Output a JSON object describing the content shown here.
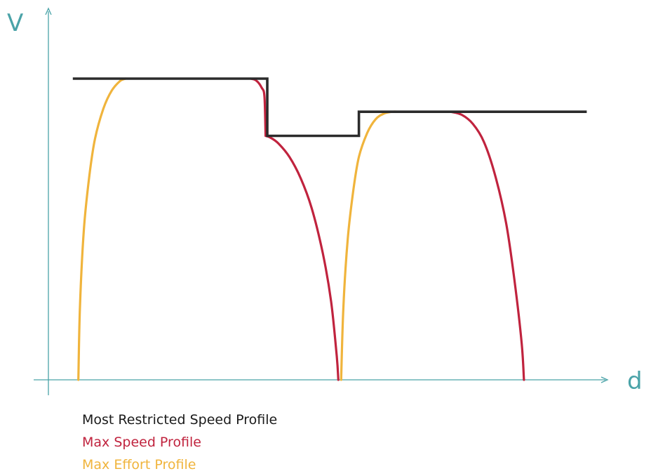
{
  "chart_data": {
    "type": "line",
    "xlabel": "d",
    "ylabel": "V",
    "axis_color": "#4aa3a8",
    "xlim": [
      0,
      100
    ],
    "ylim": [
      0,
      100
    ],
    "grid": false,
    "legend_placement": "bottom-left",
    "series": [
      {
        "name": "Most Restricted Speed Profile",
        "color": "#2b2b2b",
        "x": [
          3,
          38,
          38,
          54.5,
          54.5,
          95.5
        ],
        "y": [
          100,
          100,
          81,
          81,
          89,
          89
        ]
      },
      {
        "name": "Max Speed Profile",
        "color": "#c0233e",
        "x": [
          35,
          36,
          37,
          37.5,
          37.7,
          38.5,
          40,
          42,
          44,
          46,
          48,
          49.5,
          50.5,
          50.8,
          71,
          73,
          75,
          77,
          79,
          81,
          82.5,
          83.8,
          84.2
        ],
        "y": [
          100,
          99.4,
          97,
          94,
          81,
          80.5,
          78.5,
          74,
          67,
          57,
          42,
          26,
          8,
          0,
          89,
          88,
          85,
          79,
          68,
          52,
          33,
          12,
          0
        ]
      },
      {
        "name": "Max Effort Profile",
        "color": "#f0b43c",
        "x": [
          4,
          4.3,
          5,
          6,
          7,
          8.5,
          10,
          11.5,
          12.5,
          51.3,
          51.7,
          52.5,
          53.5,
          54.5,
          56,
          57.5,
          59,
          60.5,
          61.5
        ],
        "y": [
          0,
          25,
          50,
          68,
          80,
          90,
          96,
          99.2,
          100,
          0,
          24,
          47,
          63,
          74,
          82,
          86.5,
          88.4,
          89,
          89
        ]
      }
    ]
  }
}
